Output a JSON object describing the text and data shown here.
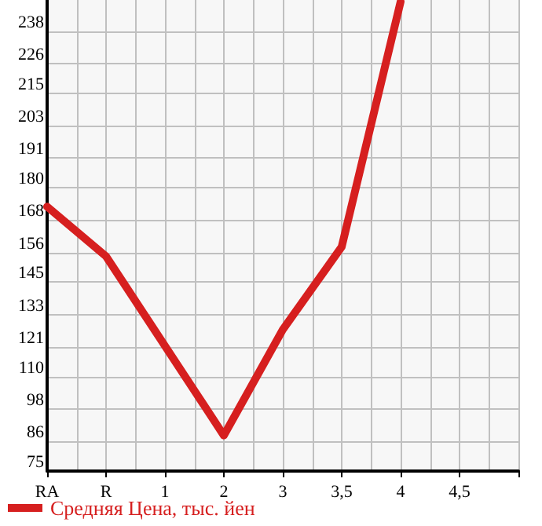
{
  "chart_data": {
    "type": "line",
    "categories": [
      "RA",
      "R",
      "1",
      "2",
      "3",
      "3,5",
      "4",
      "4,5",
      null
    ],
    "series": [
      {
        "name": "Средняя Цена, тыс. йен",
        "color": "#d61f1f",
        "values": [
          173,
          154.6,
          null,
          88.2,
          127.4,
          158.1,
          249,
          null,
          null
        ]
      }
    ],
    "ylim": [
      75,
      249.6
    ],
    "yticks": [
      75,
      86,
      98,
      110,
      121,
      133,
      145,
      156,
      168,
      180,
      191,
      203,
      215,
      226,
      238
    ],
    "grid": true,
    "legend": "bottom left",
    "marker": "none",
    "line_style": "solid"
  }
}
